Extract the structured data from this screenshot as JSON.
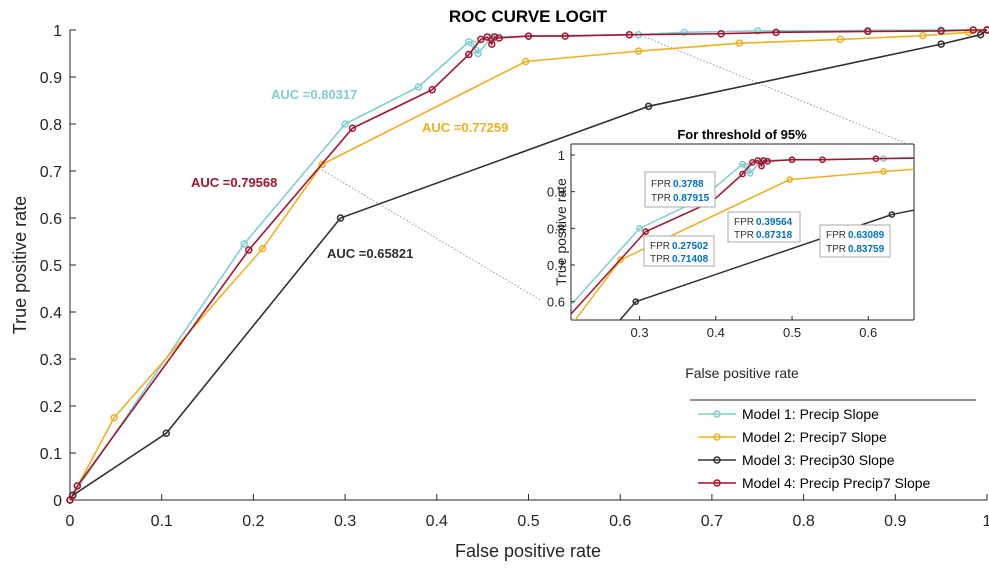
{
  "chart_data": {
    "type": "line",
    "title": "ROC CURVE LOGIT",
    "xlabel": "False positive rate",
    "ylabel": "True positive rate",
    "xlim": [
      0,
      1
    ],
    "ylim": [
      0,
      1
    ],
    "xticks": [
      "0",
      "0.1",
      "0.2",
      "0.3",
      "0.4",
      "0.5",
      "0.6",
      "0.7",
      "0.8",
      "0.9",
      "1"
    ],
    "yticks": [
      "0",
      "0.1",
      "0.2",
      "0.3",
      "0.4",
      "0.5",
      "0.6",
      "0.7",
      "0.8",
      "0.9",
      "1"
    ],
    "grid": false,
    "legend_position": "bottom-right",
    "series": [
      {
        "name": "Model 1: Precip Slope",
        "color": "#7fcfd1",
        "auc_label": "AUC =0.80317",
        "points": [
          [
            0,
            0
          ],
          [
            0.003,
            0.01
          ],
          [
            0.19,
            0.545
          ],
          [
            0.3,
            0.8
          ],
          [
            0.38,
            0.879
          ],
          [
            0.435,
            0.975
          ],
          [
            0.44,
            0.97
          ],
          [
            0.442,
            0.958
          ],
          [
            0.445,
            0.95
          ],
          [
            0.46,
            0.985
          ],
          [
            0.5,
            0.987
          ],
          [
            0.62,
            0.99
          ],
          [
            0.67,
            0.995
          ],
          [
            0.75,
            0.998
          ],
          [
            0.87,
            0.999
          ],
          [
            0.95,
            1
          ],
          [
            1,
            1
          ]
        ]
      },
      {
        "name": "Model 2: Precip7 Slope",
        "color": "#edb120",
        "auc_label": "AUC =0.77259",
        "points": [
          [
            0,
            0
          ],
          [
            0.003,
            0.01
          ],
          [
            0.048,
            0.175
          ],
          [
            0.21,
            0.535
          ],
          [
            0.275,
            0.714
          ],
          [
            0.497,
            0.933
          ],
          [
            0.62,
            0.955
          ],
          [
            0.73,
            0.972
          ],
          [
            0.84,
            0.98
          ],
          [
            0.93,
            0.988
          ],
          [
            0.98,
            0.995
          ],
          [
            1,
            1
          ]
        ]
      },
      {
        "name": "Model 3: Precip30 Slope",
        "color": "#303030",
        "auc_label": "AUC =0.65821",
        "points": [
          [
            0,
            0
          ],
          [
            0.003,
            0.01
          ],
          [
            0.105,
            0.142
          ],
          [
            0.295,
            0.6
          ],
          [
            0.6309,
            0.83759
          ],
          [
            0.95,
            0.97
          ],
          [
            0.993,
            0.99
          ],
          [
            1,
            1
          ]
        ]
      },
      {
        "name": "Model 4: Precip Precip7 Slope",
        "color": "#a2142f",
        "auc_label": "AUC =0.79568",
        "points": [
          [
            0,
            0
          ],
          [
            0.008,
            0.03
          ],
          [
            0.195,
            0.532
          ],
          [
            0.308,
            0.791
          ],
          [
            0.395,
            0.873
          ],
          [
            0.435,
            0.948
          ],
          [
            0.448,
            0.98
          ],
          [
            0.455,
            0.985
          ],
          [
            0.46,
            0.97
          ],
          [
            0.463,
            0.985
          ],
          [
            0.468,
            0.983
          ],
          [
            0.5,
            0.987
          ],
          [
            0.54,
            0.987
          ],
          [
            0.61,
            0.99
          ],
          [
            0.71,
            0.992
          ],
          [
            0.77,
            0.995
          ],
          [
            0.87,
            0.997
          ],
          [
            0.95,
            0.998
          ],
          [
            0.985,
            1
          ],
          [
            1,
            1
          ]
        ]
      }
    ],
    "inset": {
      "title": "For threshold of 95%",
      "xlabel": "False positive rate",
      "ylabel": "True positive rate",
      "xlim": [
        0.21,
        0.66
      ],
      "ylim": [
        0.55,
        1.03
      ],
      "xticks": [
        "0.3",
        "0.4",
        "0.5",
        "0.6"
      ],
      "yticks": [
        "0.6",
        "0.7",
        "0.8",
        "0.9",
        "1"
      ],
      "datatips": [
        {
          "fpr_key": "FPR",
          "fpr": "0.3788",
          "tpr_key": "TPR",
          "tpr": "0.87915"
        },
        {
          "fpr_key": "FPR",
          "fpr": "0.39564",
          "tpr_key": "TPR",
          "tpr": "0.87318"
        },
        {
          "fpr_key": "FPR",
          "fpr": "0.27502",
          "tpr_key": "TPR",
          "tpr": "0.71408"
        },
        {
          "fpr_key": "FPR",
          "fpr": "0.63089",
          "tpr_key": "TPR",
          "tpr": "0.83759"
        }
      ]
    }
  }
}
